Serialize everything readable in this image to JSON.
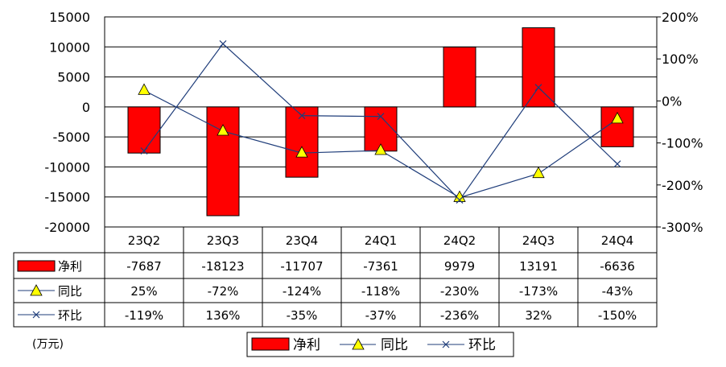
{
  "chart_data": {
    "type": "bar",
    "categories": [
      "23Q2",
      "23Q3",
      "23Q4",
      "24Q1",
      "24Q2",
      "24Q3",
      "24Q4"
    ],
    "unit_label": "(万元)",
    "y_left": {
      "min": -20000,
      "max": 15000,
      "step": 5000,
      "ticks": [
        "15000",
        "10000",
        "5000",
        "0",
        "-5000",
        "-10000",
        "-15000",
        "-20000"
      ]
    },
    "y_right": {
      "min": -300,
      "max": 200,
      "step": 100,
      "ticks": [
        "200%",
        "100%",
        "0%",
        "-100%",
        "-200%",
        "-300%"
      ]
    },
    "grid": true,
    "legend_position": "bottom",
    "series": [
      {
        "name": "净利",
        "type": "bar",
        "axis": "left",
        "color": "#ff0000",
        "values": [
          -7687,
          -18123,
          -11707,
          -7361,
          9979,
          13191,
          -6636
        ],
        "labels": [
          "-7687",
          "-18123",
          "-11707",
          "-7361",
          "9979",
          "13191",
          "-6636"
        ]
      },
      {
        "name": "同比",
        "type": "line",
        "marker": "triangle",
        "axis": "right",
        "color": "#ffff00",
        "line_color": "#1f3d7a",
        "values": [
          25,
          -72,
          -124,
          -118,
          -230,
          -173,
          -43
        ],
        "labels": [
          "25%",
          "-72%",
          "-124%",
          "-118%",
          "-230%",
          "-173%",
          "-43%"
        ]
      },
      {
        "name": "环比",
        "type": "line",
        "marker": "x",
        "axis": "right",
        "color": "#1f3d7a",
        "line_color": "#1f3d7a",
        "values": [
          -119,
          136,
          -35,
          -37,
          -236,
          32,
          -150
        ],
        "labels": [
          "-119%",
          "136%",
          "-35%",
          "-37%",
          "-236%",
          "32%",
          "-150%"
        ]
      }
    ]
  }
}
